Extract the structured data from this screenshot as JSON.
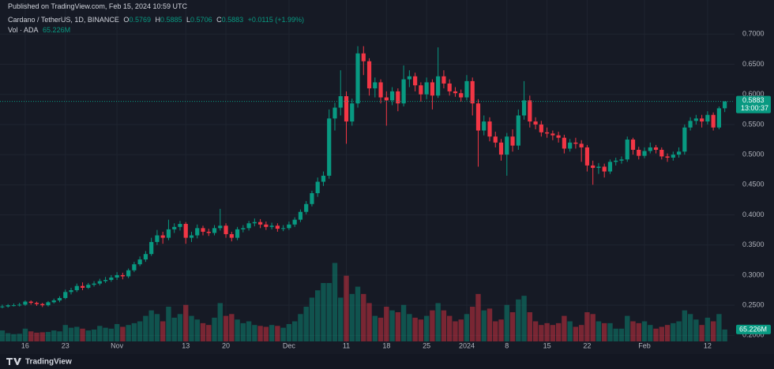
{
  "chart_data": {
    "type": "candlestick",
    "published": "Published on TradingView.com, Feb 15, 2024 10:59 UTC",
    "title": "Cardano / TetherUS, 1D, BINANCE",
    "ohlc_letters": [
      "O",
      "H",
      "L",
      "C"
    ],
    "change": "+0.0115 (+1.99%)",
    "countdown": "13:00:37",
    "brand": "TradingView",
    "up_color": "#089981",
    "down_color": "#f23645",
    "grid": true,
    "xlim": [
      -0.4,
      127.7
    ],
    "ylim": [
      0.19,
      0.72
    ],
    "y2lim": [
      0,
      1750
    ],
    "xticks": [
      {
        "value": 4,
        "label": "16"
      },
      {
        "value": 11,
        "label": "23"
      },
      {
        "value": 20,
        "label": "Nov"
      },
      {
        "value": 32,
        "label": "13"
      },
      {
        "value": 39,
        "label": "20"
      },
      {
        "value": 50,
        "label": "Dec"
      },
      {
        "value": 60,
        "label": "11"
      },
      {
        "value": 67,
        "label": "18"
      },
      {
        "value": 74,
        "label": "25"
      },
      {
        "value": 81,
        "label": "2024"
      },
      {
        "value": 88,
        "label": "8"
      },
      {
        "value": 95,
        "label": "15"
      },
      {
        "value": 102,
        "label": "22"
      },
      {
        "value": 112,
        "label": "Feb"
      },
      {
        "value": 123,
        "label": "12"
      }
    ],
    "yticks": [
      {
        "value": 0.2,
        "label": "0.2000"
      },
      {
        "value": 0.25,
        "label": "0.2500"
      },
      {
        "value": 0.3,
        "label": "0.3000"
      },
      {
        "value": 0.35,
        "label": "0.3500"
      },
      {
        "value": 0.4,
        "label": "0.4000"
      },
      {
        "value": 0.45,
        "label": "0.4500"
      },
      {
        "value": 0.5,
        "label": "0.5000"
      },
      {
        "value": 0.55,
        "label": "0.5500"
      },
      {
        "value": 0.6,
        "label": "0.6000"
      },
      {
        "value": 0.65,
        "label": "0.6500"
      },
      {
        "value": 0.7,
        "label": "0.7000"
      }
    ],
    "open": [
      0.247,
      0.248,
      0.25,
      0.25,
      0.251,
      0.256,
      0.254,
      0.252,
      0.25,
      0.255,
      0.258,
      0.262,
      0.272,
      0.275,
      0.282,
      0.279,
      0.284,
      0.286,
      0.29,
      0.292,
      0.296,
      0.3,
      0.298,
      0.308,
      0.318,
      0.326,
      0.335,
      0.355,
      0.366,
      0.362,
      0.376,
      0.38,
      0.385,
      0.362,
      0.366,
      0.378,
      0.372,
      0.37,
      0.378,
      0.382,
      0.368,
      0.362,
      0.376,
      0.378,
      0.386,
      0.388,
      0.384,
      0.38,
      0.382,
      0.377,
      0.378,
      0.384,
      0.392,
      0.405,
      0.418,
      0.436,
      0.455,
      0.465,
      0.56,
      0.578,
      0.597,
      0.555,
      0.585,
      0.668,
      0.655,
      0.61,
      0.62,
      0.595,
      0.59,
      0.605,
      0.585,
      0.625,
      0.63,
      0.615,
      0.6,
      0.62,
      0.598,
      0.63,
      0.618,
      0.605,
      0.602,
      0.595,
      0.622,
      0.585,
      0.54,
      0.555,
      0.53,
      0.52,
      0.5,
      0.53,
      0.515,
      0.565,
      0.59,
      0.555,
      0.55,
      0.537,
      0.535,
      0.532,
      0.528,
      0.51,
      0.52,
      0.518,
      0.512,
      0.482,
      0.478,
      0.48,
      0.472,
      0.488,
      0.49,
      0.492,
      0.525,
      0.508,
      0.498,
      0.506,
      0.512,
      0.508,
      0.497,
      0.495,
      0.5,
      0.505,
      0.545,
      0.556,
      0.56,
      0.555,
      0.566,
      0.545,
      0.5769
    ],
    "high": [
      0.251,
      0.252,
      0.253,
      0.254,
      0.258,
      0.258,
      0.256,
      0.254,
      0.257,
      0.261,
      0.265,
      0.276,
      0.279,
      0.286,
      0.288,
      0.287,
      0.29,
      0.294,
      0.297,
      0.3,
      0.305,
      0.304,
      0.311,
      0.322,
      0.331,
      0.34,
      0.362,
      0.375,
      0.372,
      0.392,
      0.386,
      0.39,
      0.388,
      0.372,
      0.384,
      0.382,
      0.377,
      0.383,
      0.41,
      0.386,
      0.372,
      0.38,
      0.383,
      0.39,
      0.394,
      0.393,
      0.389,
      0.387,
      0.386,
      0.383,
      0.389,
      0.396,
      0.409,
      0.423,
      0.44,
      0.462,
      0.472,
      0.575,
      0.586,
      0.64,
      0.605,
      0.593,
      0.68,
      0.68,
      0.66,
      0.628,
      0.625,
      0.605,
      0.612,
      0.61,
      0.648,
      0.64,
      0.636,
      0.62,
      0.628,
      0.625,
      0.678,
      0.64,
      0.625,
      0.612,
      0.608,
      0.632,
      0.628,
      0.592,
      0.565,
      0.562,
      0.538,
      0.526,
      0.536,
      0.542,
      0.575,
      0.622,
      0.598,
      0.562,
      0.556,
      0.545,
      0.54,
      0.538,
      0.533,
      0.526,
      0.528,
      0.524,
      0.516,
      0.49,
      0.486,
      0.485,
      0.492,
      0.495,
      0.497,
      0.53,
      0.528,
      0.513,
      0.512,
      0.52,
      0.516,
      0.512,
      0.502,
      0.505,
      0.512,
      0.55,
      0.562,
      0.566,
      0.566,
      0.572,
      0.57,
      0.58,
      0.5885
    ],
    "low": [
      0.245,
      0.246,
      0.248,
      0.248,
      0.249,
      0.251,
      0.249,
      0.247,
      0.248,
      0.253,
      0.255,
      0.26,
      0.268,
      0.272,
      0.275,
      0.277,
      0.281,
      0.283,
      0.287,
      0.289,
      0.292,
      0.293,
      0.295,
      0.305,
      0.315,
      0.322,
      0.332,
      0.35,
      0.352,
      0.358,
      0.37,
      0.374,
      0.352,
      0.355,
      0.361,
      0.366,
      0.365,
      0.366,
      0.374,
      0.362,
      0.356,
      0.358,
      0.371,
      0.374,
      0.381,
      0.378,
      0.375,
      0.376,
      0.372,
      0.373,
      0.375,
      0.38,
      0.388,
      0.401,
      0.414,
      0.43,
      0.448,
      0.46,
      0.54,
      0.565,
      0.518,
      0.548,
      0.578,
      0.632,
      0.598,
      0.595,
      0.585,
      0.548,
      0.582,
      0.572,
      0.58,
      0.612,
      0.605,
      0.588,
      0.592,
      0.575,
      0.594,
      0.61,
      0.598,
      0.596,
      0.588,
      0.59,
      0.565,
      0.48,
      0.532,
      0.522,
      0.512,
      0.49,
      0.465,
      0.505,
      0.508,
      0.558,
      0.545,
      0.542,
      0.53,
      0.528,
      0.524,
      0.52,
      0.502,
      0.505,
      0.51,
      0.488,
      0.472,
      0.45,
      0.468,
      0.462,
      0.468,
      0.482,
      0.485,
      0.488,
      0.5,
      0.492,
      0.494,
      0.502,
      0.502,
      0.492,
      0.488,
      0.49,
      0.495,
      0.5,
      0.54,
      0.55,
      0.545,
      0.55,
      0.54,
      0.542,
      0.5706
    ],
    "close": [
      0.248,
      0.25,
      0.25,
      0.251,
      0.256,
      0.254,
      0.252,
      0.25,
      0.255,
      0.258,
      0.262,
      0.272,
      0.275,
      0.282,
      0.279,
      0.284,
      0.286,
      0.29,
      0.292,
      0.296,
      0.3,
      0.298,
      0.308,
      0.318,
      0.326,
      0.335,
      0.355,
      0.366,
      0.362,
      0.376,
      0.38,
      0.385,
      0.362,
      0.366,
      0.378,
      0.372,
      0.37,
      0.378,
      0.382,
      0.368,
      0.362,
      0.376,
      0.378,
      0.386,
      0.388,
      0.384,
      0.38,
      0.382,
      0.377,
      0.378,
      0.384,
      0.392,
      0.405,
      0.418,
      0.436,
      0.455,
      0.465,
      0.56,
      0.578,
      0.597,
      0.555,
      0.585,
      0.668,
      0.655,
      0.61,
      0.62,
      0.595,
      0.59,
      0.605,
      0.585,
      0.625,
      0.63,
      0.615,
      0.6,
      0.62,
      0.598,
      0.63,
      0.618,
      0.605,
      0.602,
      0.595,
      0.622,
      0.585,
      0.54,
      0.555,
      0.53,
      0.52,
      0.5,
      0.53,
      0.515,
      0.565,
      0.59,
      0.555,
      0.55,
      0.537,
      0.535,
      0.532,
      0.528,
      0.51,
      0.52,
      0.518,
      0.512,
      0.482,
      0.478,
      0.48,
      0.472,
      0.488,
      0.49,
      0.492,
      0.525,
      0.508,
      0.498,
      0.506,
      0.512,
      0.508,
      0.497,
      0.495,
      0.5,
      0.505,
      0.545,
      0.556,
      0.56,
      0.555,
      0.566,
      0.545,
      0.5769,
      0.5883
    ],
    "volume": {
      "name": "Vol · ADA",
      "axis": "y2",
      "values": [
        60,
        45,
        40,
        42,
        70,
        55,
        48,
        50,
        52,
        60,
        55,
        90,
        75,
        80,
        70,
        60,
        65,
        85,
        75,
        70,
        95,
        80,
        90,
        100,
        110,
        140,
        170,
        150,
        110,
        190,
        130,
        150,
        200,
        140,
        120,
        100,
        90,
        130,
        210,
        140,
        150,
        120,
        100,
        110,
        90,
        85,
        80,
        90,
        85,
        75,
        95,
        110,
        150,
        190,
        240,
        280,
        320,
        320,
        430,
        240,
        360,
        260,
        300,
        260,
        210,
        140,
        130,
        190,
        170,
        160,
        200,
        150,
        130,
        120,
        140,
        170,
        210,
        170,
        140,
        110,
        120,
        150,
        190,
        260,
        170,
        180,
        110,
        120,
        200,
        160,
        230,
        250,
        160,
        110,
        90,
        100,
        90,
        100,
        140,
        110,
        80,
        90,
        160,
        150,
        110,
        100,
        100,
        70,
        70,
        140,
        110,
        100,
        110,
        90,
        70,
        80,
        90,
        100,
        110,
        170,
        150,
        120,
        90,
        130,
        110,
        150,
        65.226
      ],
      "value_labels": [
        null,
        null,
        null,
        null,
        null,
        null,
        null,
        null,
        null,
        null,
        null,
        null,
        null,
        null,
        null,
        null,
        null,
        null,
        null,
        null,
        null,
        null,
        null,
        null,
        null,
        null,
        null,
        null,
        null,
        null,
        null,
        null,
        null,
        null,
        null,
        null,
        null,
        null,
        null,
        null,
        null,
        null,
        null,
        null,
        null,
        null,
        null,
        null,
        null,
        null,
        null,
        null,
        null,
        null,
        null,
        null,
        null,
        null,
        null,
        null,
        null,
        null,
        null,
        null,
        null,
        null,
        null,
        null,
        null,
        null,
        null,
        null,
        null,
        null,
        null,
        null,
        null,
        null,
        null,
        null,
        null,
        null,
        null,
        null,
        null,
        null,
        null,
        null,
        null,
        null,
        null,
        null,
        null,
        null,
        null,
        null,
        null,
        null,
        null,
        null,
        null,
        null,
        null,
        null,
        null,
        null,
        null,
        null,
        null,
        null,
        null,
        null,
        null,
        null,
        null,
        null,
        null,
        null,
        null,
        null,
        null,
        null,
        null,
        null,
        null,
        null,
        "65.226M"
      ]
    }
  }
}
